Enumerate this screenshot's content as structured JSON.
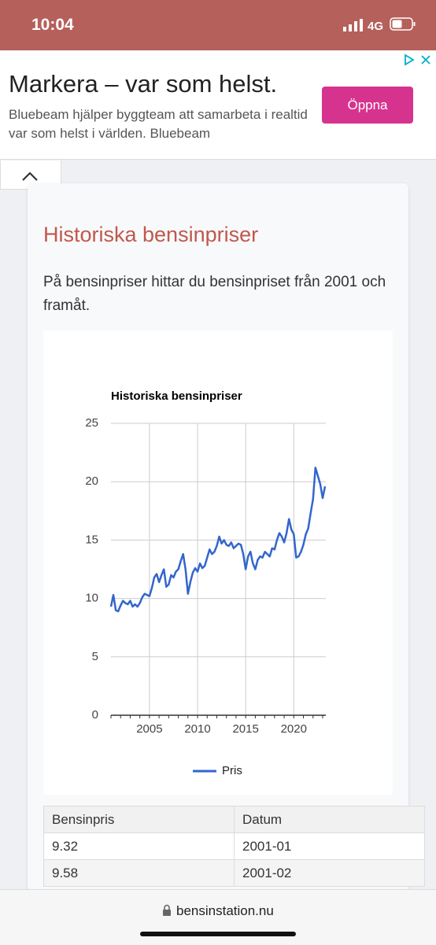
{
  "status_bar": {
    "time": "10:04",
    "network": "4G"
  },
  "ad": {
    "title": "Markera – var som helst.",
    "text": "Bluebeam hjälper byggteam att samarbeta i realtid var som helst i världen. Bluebeam",
    "button": "Öppna"
  },
  "article": {
    "heading": "Historiska bensinpriser",
    "paragraph": "På bensinpriser hittar du bensinpriset från 2001 och framåt."
  },
  "chart_data": {
    "type": "line",
    "title": "Historiska bensinpriser",
    "x": [
      2001.0,
      2001.25,
      2001.5,
      2001.75,
      2002.0,
      2002.25,
      2002.5,
      2002.75,
      2003.0,
      2003.25,
      2003.5,
      2003.75,
      2004.0,
      2004.25,
      2004.5,
      2004.75,
      2005.0,
      2005.25,
      2005.5,
      2005.75,
      2006.0,
      2006.25,
      2006.5,
      2006.75,
      2007.0,
      2007.25,
      2007.5,
      2007.75,
      2008.0,
      2008.25,
      2008.5,
      2008.75,
      2009.0,
      2009.25,
      2009.5,
      2009.75,
      2010.0,
      2010.25,
      2010.5,
      2010.75,
      2011.0,
      2011.25,
      2011.5,
      2011.75,
      2012.0,
      2012.25,
      2012.5,
      2012.75,
      2013.0,
      2013.25,
      2013.5,
      2013.75,
      2014.0,
      2014.25,
      2014.5,
      2014.75,
      2015.0,
      2015.25,
      2015.5,
      2015.75,
      2016.0,
      2016.25,
      2016.5,
      2016.75,
      2017.0,
      2017.25,
      2017.5,
      2017.75,
      2018.0,
      2018.25,
      2018.5,
      2018.75,
      2019.0,
      2019.25,
      2019.5,
      2019.75,
      2020.0,
      2020.25,
      2020.5,
      2020.75,
      2021.0,
      2021.25,
      2021.5,
      2021.75,
      2022.0,
      2022.25,
      2022.5,
      2022.75,
      2023.0,
      2023.25
    ],
    "series": [
      {
        "name": "Pris",
        "color": "#3366cc",
        "values": [
          9.3,
          10.3,
          9.0,
          8.9,
          9.4,
          9.8,
          9.6,
          9.5,
          9.8,
          9.3,
          9.5,
          9.3,
          9.6,
          10.1,
          10.4,
          10.3,
          10.2,
          10.9,
          11.8,
          12.1,
          11.4,
          12.0,
          12.5,
          11.0,
          11.2,
          12.0,
          11.8,
          12.3,
          12.5,
          13.2,
          13.8,
          12.5,
          10.4,
          11.4,
          12.2,
          12.6,
          12.3,
          13.0,
          12.6,
          12.8,
          13.5,
          14.2,
          13.8,
          14.0,
          14.5,
          15.3,
          14.7,
          15.0,
          14.6,
          14.5,
          14.8,
          14.3,
          14.5,
          14.7,
          14.6,
          13.8,
          12.5,
          13.6,
          14.0,
          13.0,
          12.5,
          13.3,
          13.6,
          13.5,
          14.0,
          13.8,
          13.6,
          14.3,
          14.2,
          15.0,
          15.6,
          15.3,
          14.8,
          15.6,
          16.8,
          15.9,
          15.5,
          13.5,
          13.6,
          14.0,
          14.6,
          15.5,
          16.0,
          17.3,
          18.5,
          21.2,
          20.5,
          19.8,
          18.6,
          19.6
        ]
      }
    ],
    "xlim": [
      2001,
      2023.33
    ],
    "xticks": [
      2005,
      2010,
      2015,
      2020
    ],
    "ylim": [
      0,
      25
    ],
    "yticks": [
      0,
      5,
      10,
      15,
      20,
      25
    ],
    "grid": true,
    "legend": "bottom"
  },
  "table": {
    "header": [
      "Bensinpris",
      "Datum"
    ],
    "rows": [
      [
        "9.32",
        "2001-01"
      ],
      [
        "9.58",
        "2001-02"
      ]
    ]
  },
  "footer": {
    "url": "bensinstation.nu"
  }
}
